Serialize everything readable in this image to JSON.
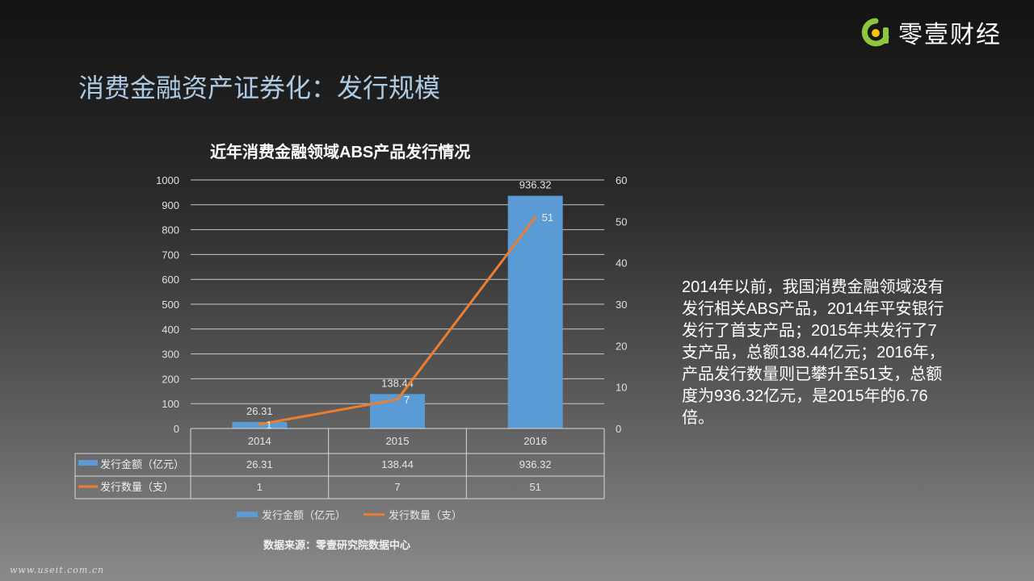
{
  "logo": {
    "text": "零壹财经",
    "icon": "brand-logo-icon",
    "colors": {
      "green": "#8dc63f",
      "yellow": "#f6c400"
    }
  },
  "page_title": "消费金融资产证券化：发行规模",
  "description": "2014年以前，我国消费金融领域没有发行相关ABS产品，2014年平安银行发行了首支产品；2015年共发行了7支产品，总额138.44亿元；2016年，产品发行数量则已攀升至51支，总额度为936.32亿元，是2015年的6.76倍。",
  "source": "数据来源：零壹研究院数据中心",
  "watermark": "www.useit.com.cn",
  "chart_data": {
    "type": "bar",
    "title": "近年消费金融领域ABS产品发行情况",
    "categories": [
      "2014",
      "2015",
      "2016"
    ],
    "series": [
      {
        "name": "发行金额（亿元）",
        "type": "bar",
        "axis": "left",
        "color": "#5b9bd5",
        "values": [
          26.31,
          138.44,
          936.32
        ]
      },
      {
        "name": "发行数量（支）",
        "type": "line",
        "axis": "right",
        "color": "#ed7d31",
        "values": [
          1,
          7,
          51
        ]
      }
    ],
    "data_labels": {
      "bar": [
        "26.31",
        "138.44",
        "936.32"
      ],
      "line": [
        "1",
        "7",
        "51"
      ]
    },
    "y_left": {
      "min": 0,
      "max": 1000,
      "step": 100,
      "ticks": [
        "0",
        "100",
        "200",
        "300",
        "400",
        "500",
        "600",
        "700",
        "800",
        "900",
        "1000"
      ]
    },
    "y_right": {
      "min": 0,
      "max": 60,
      "step": 10,
      "ticks": [
        "0",
        "10",
        "20",
        "30",
        "40",
        "50",
        "60"
      ]
    },
    "grid": true,
    "legend_position": "bottom",
    "data_table": {
      "rows": [
        {
          "label": "发行金额（亿元）",
          "values": [
            "26.31",
            "138.44",
            "936.32"
          ]
        },
        {
          "label": "发行数量（支）",
          "values": [
            "1",
            "7",
            "51"
          ]
        }
      ]
    }
  }
}
